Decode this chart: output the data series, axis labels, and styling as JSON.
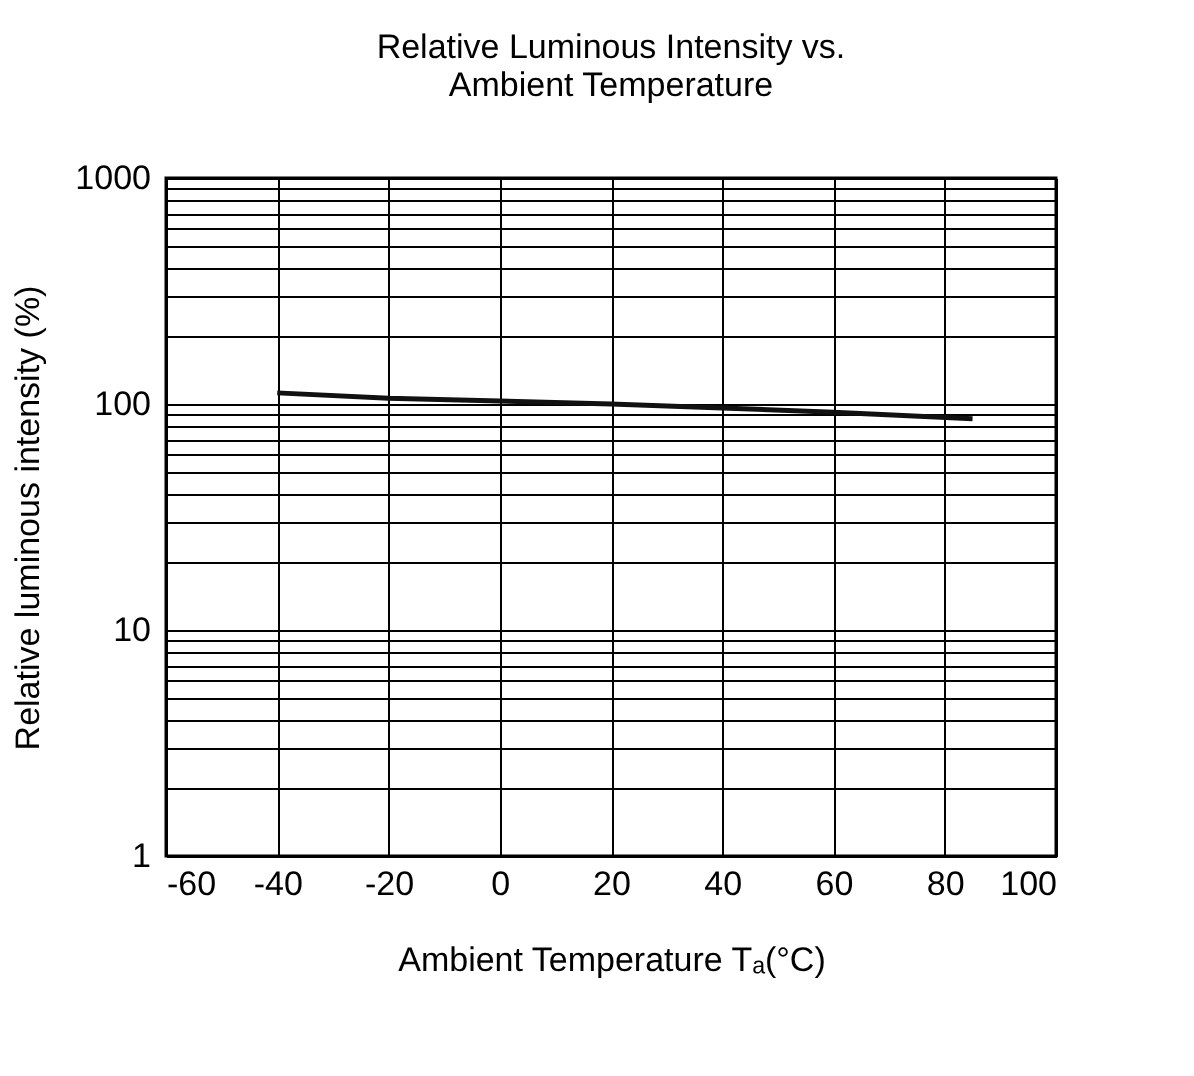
{
  "chart_data": {
    "type": "line",
    "title": [
      "Relative Luminous Intensity vs.",
      "Ambient Temperature"
    ],
    "xlabel": "Ambient Temperature Tₐ(°C)",
    "ylabel": "Relative luminous intensity (%)",
    "x": [
      -40,
      -20,
      0,
      20,
      40,
      60,
      85
    ],
    "series": [
      {
        "color": "#111111",
        "values": [
          112,
          106,
          103,
          100,
          96,
          92,
          86
        ]
      }
    ],
    "xlim": [
      -60,
      100
    ],
    "xticks": [
      -60,
      -40,
      -20,
      0,
      20,
      40,
      60,
      80,
      100
    ],
    "ylim": [
      1,
      1000
    ],
    "log": "y",
    "yticks": [
      1,
      {
        "value": 2,
        "label": null
      },
      {
        "value": 3,
        "label": null
      },
      {
        "value": 4,
        "label": null
      },
      {
        "value": 5,
        "label": null
      },
      {
        "value": 6,
        "label": null
      },
      {
        "value": 7,
        "label": null
      },
      {
        "value": 8,
        "label": null
      },
      {
        "value": 9,
        "label": null
      },
      10,
      {
        "value": 20,
        "label": null
      },
      {
        "value": 30,
        "label": null
      },
      {
        "value": 40,
        "label": null
      },
      {
        "value": 50,
        "label": null
      },
      {
        "value": 60,
        "label": null
      },
      {
        "value": 70,
        "label": null
      },
      {
        "value": 80,
        "label": null
      },
      {
        "value": 90,
        "label": null
      },
      100,
      {
        "value": 200,
        "label": null
      },
      {
        "value": 300,
        "label": null
      },
      {
        "value": 400,
        "label": null
      },
      {
        "value": 500,
        "label": null
      },
      {
        "value": 600,
        "label": null
      },
      {
        "value": 700,
        "label": null
      },
      {
        "value": 800,
        "label": null
      },
      {
        "value": 900,
        "label": null
      },
      1000
    ],
    "grid": true,
    "marker": "none",
    "line_style": "solid"
  }
}
